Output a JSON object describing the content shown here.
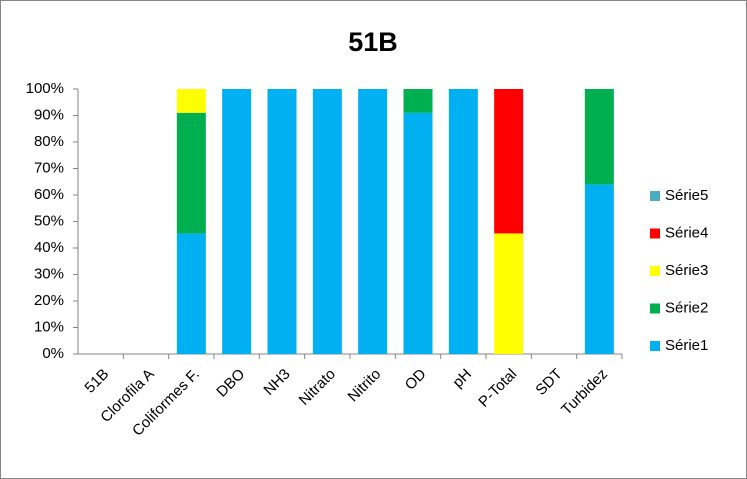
{
  "chart_data": {
    "type": "stacked_bar",
    "title": "51B",
    "categories": [
      "51B",
      "Clorofila A",
      "Coliformes F.",
      "DBO",
      "NH3",
      "Nitrato",
      "Nitrito",
      "OD",
      "pH",
      "P-Total",
      "SDT",
      "Turbidez"
    ],
    "series": [
      {
        "name": "Série1",
        "color": "#00b0f0",
        "values": [
          0,
          0,
          45.5,
          100,
          100,
          100,
          100,
          91,
          100,
          0,
          0,
          64
        ]
      },
      {
        "name": "Série2",
        "color": "#00b050",
        "values": [
          0,
          0,
          45.5,
          0,
          0,
          0,
          0,
          9,
          0,
          0,
          0,
          36
        ]
      },
      {
        "name": "Série3",
        "color": "#ffff00",
        "values": [
          0,
          0,
          9,
          0,
          0,
          0,
          0,
          0,
          0,
          45.5,
          0,
          0
        ]
      },
      {
        "name": "Série4",
        "color": "#ff0000",
        "values": [
          0,
          0,
          0,
          0,
          0,
          0,
          0,
          0,
          0,
          54.5,
          0,
          0
        ]
      },
      {
        "name": "Série5",
        "color": "#4bacc6",
        "values": [
          0,
          0,
          0,
          0,
          0,
          0,
          0,
          0,
          0,
          0,
          0,
          0
        ]
      }
    ],
    "ylim": [
      0,
      100
    ],
    "yticks": [
      {
        "value": 0,
        "label": "0%"
      },
      {
        "value": 10,
        "label": "10%"
      },
      {
        "value": 20,
        "label": "20%"
      },
      {
        "value": 30,
        "label": "30%"
      },
      {
        "value": 40,
        "label": "40%"
      },
      {
        "value": 50,
        "label": "50%"
      },
      {
        "value": 60,
        "label": "60%"
      },
      {
        "value": 70,
        "label": "70%"
      },
      {
        "value": 80,
        "label": "80%"
      },
      {
        "value": 90,
        "label": "90%"
      },
      {
        "value": 100,
        "label": "100%"
      }
    ],
    "grid": false,
    "legend": "right"
  }
}
